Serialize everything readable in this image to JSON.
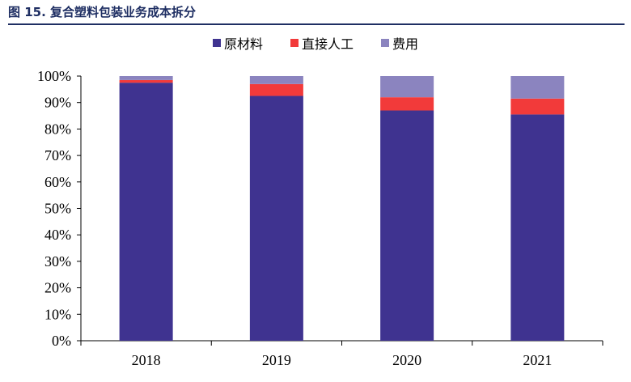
{
  "figure": {
    "title": "图 15. 复合塑料包装业务成本拆分"
  },
  "chart_data": {
    "type": "bar",
    "stacked": true,
    "categories": [
      "2018",
      "2019",
      "2020",
      "2021"
    ],
    "series": [
      {
        "name": "原材料",
        "values": [
          97.5,
          92.5,
          87.0,
          85.5
        ],
        "color": "#3f3390"
      },
      {
        "name": "直接人工",
        "values": [
          1.0,
          4.5,
          5.0,
          6.0
        ],
        "color": "#f23a3a"
      },
      {
        "name": "费用",
        "values": [
          1.5,
          3.0,
          8.0,
          8.5
        ],
        "color": "#8b84bf"
      }
    ],
    "ylim": [
      0,
      100
    ],
    "yticks": [
      "0%",
      "10%",
      "20%",
      "30%",
      "40%",
      "50%",
      "60%",
      "70%",
      "80%",
      "90%",
      "100%"
    ],
    "grid": false,
    "legend_position": "top"
  }
}
